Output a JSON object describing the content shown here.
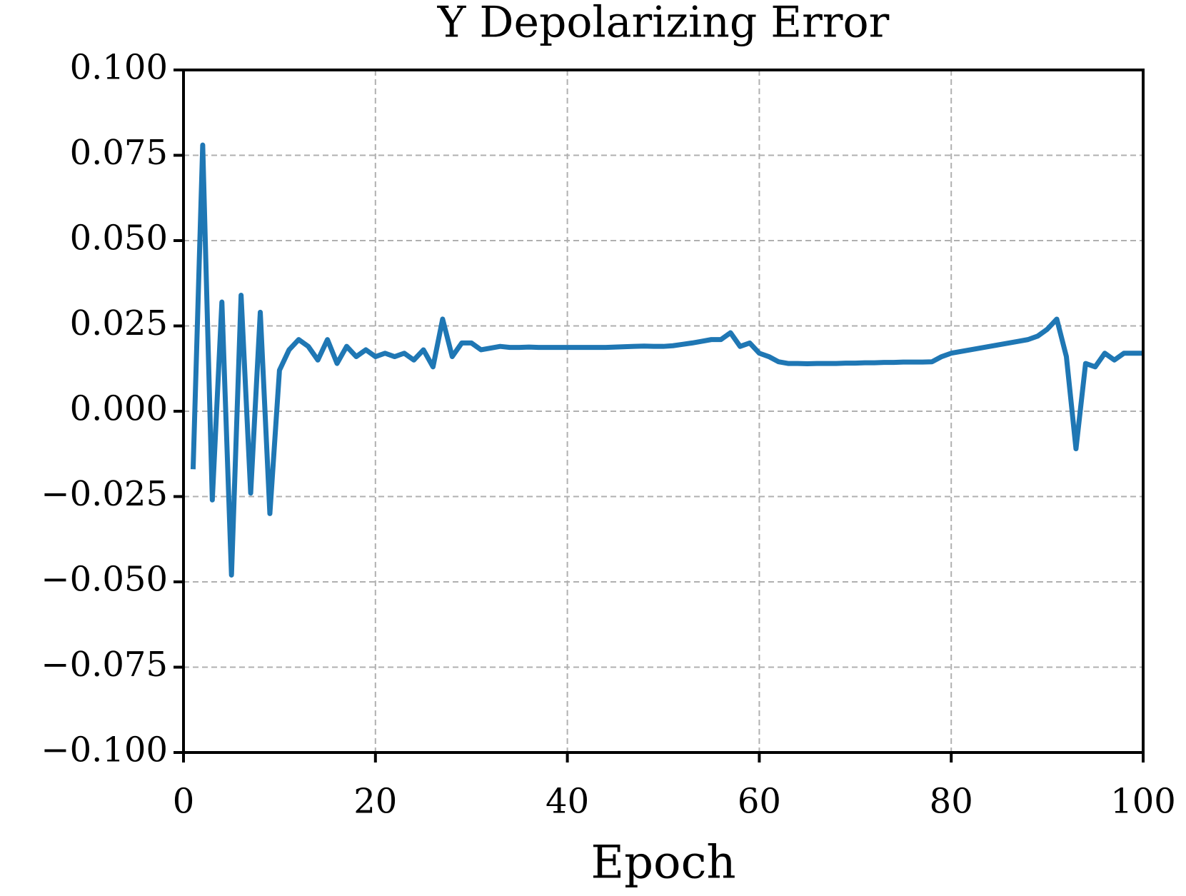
{
  "chart_data": {
    "type": "line",
    "title": "Y Depolarizing Error",
    "x_label": "Epoch",
    "x": [
      1,
      2,
      3,
      4,
      5,
      6,
      7,
      8,
      9,
      10,
      11,
      12,
      13,
      14,
      15,
      16,
      17,
      18,
      19,
      20,
      21,
      22,
      23,
      24,
      25,
      26,
      27,
      28,
      29,
      30,
      31,
      32,
      33,
      34,
      35,
      36,
      37,
      38,
      39,
      40,
      41,
      42,
      43,
      44,
      45,
      46,
      47,
      48,
      49,
      50,
      51,
      52,
      53,
      54,
      55,
      56,
      57,
      58,
      59,
      60,
      61,
      62,
      63,
      64,
      65,
      66,
      67,
      68,
      69,
      70,
      71,
      72,
      73,
      74,
      75,
      76,
      77,
      78,
      79,
      80,
      81,
      82,
      83,
      84,
      85,
      86,
      87,
      88,
      89,
      90,
      91,
      92,
      93,
      94,
      95,
      96,
      97,
      98,
      99,
      100
    ],
    "series": [
      {
        "color": "#1f77b4",
        "values": [
          -0.017,
          0.078,
          -0.026,
          0.032,
          -0.048,
          0.034,
          -0.024,
          0.029,
          -0.03,
          0.012,
          0.018,
          0.021,
          0.019,
          0.015,
          0.021,
          0.014,
          0.019,
          0.016,
          0.018,
          0.016,
          0.017,
          0.016,
          0.017,
          0.015,
          0.018,
          0.013,
          0.027,
          0.016,
          0.02,
          0.02,
          0.018,
          0.0185,
          0.019,
          0.0187,
          0.0187,
          0.0188,
          0.0187,
          0.0187,
          0.0187,
          0.0187,
          0.0187,
          0.0187,
          0.0187,
          0.0187,
          0.0188,
          0.0189,
          0.019,
          0.0191,
          0.019,
          0.019,
          0.0192,
          0.0196,
          0.02,
          0.0205,
          0.021,
          0.021,
          0.023,
          0.019,
          0.02,
          0.017,
          0.016,
          0.0145,
          0.014,
          0.014,
          0.0139,
          0.014,
          0.014,
          0.014,
          0.0141,
          0.0141,
          0.0142,
          0.0142,
          0.0143,
          0.0143,
          0.0144,
          0.0144,
          0.0144,
          0.0145,
          0.016,
          0.017,
          0.0175,
          0.018,
          0.0185,
          0.019,
          0.0195,
          0.02,
          0.0205,
          0.021,
          0.022,
          0.024,
          0.027,
          0.016,
          -0.011,
          0.014,
          0.013,
          0.017,
          0.015,
          0.017,
          0.017,
          0.017
        ]
      }
    ],
    "xlim": [
      0,
      100
    ],
    "xticks": [
      0,
      20,
      40,
      60,
      80,
      100
    ],
    "ylim": [
      -0.1,
      0.1
    ],
    "yticks": [
      {
        "value": -0.1,
        "label": "−0.100"
      },
      {
        "value": -0.075,
        "label": "−0.075"
      },
      {
        "value": -0.05,
        "label": "−0.050"
      },
      {
        "value": -0.025,
        "label": "−0.025"
      },
      {
        "value": 0,
        "label": "0.000"
      },
      {
        "value": 0.025,
        "label": "0.025"
      },
      {
        "value": 0.05,
        "label": "0.050"
      },
      {
        "value": 0.075,
        "label": "0.075"
      },
      {
        "value": 0.1,
        "label": "0.100"
      }
    ],
    "grid": true
  }
}
